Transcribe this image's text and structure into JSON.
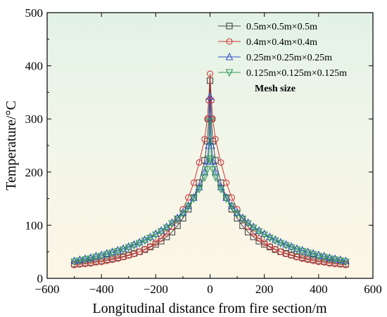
{
  "chart_data": {
    "type": "line",
    "title": "",
    "xlabel": "Longitudinal distance from fire section/m",
    "ylabel": "Temperature/°C",
    "xlim": [
      -600,
      600
    ],
    "ylim": [
      0,
      500
    ],
    "xticks": [
      -600,
      -400,
      -200,
      0,
      200,
      400,
      600
    ],
    "yticks": [
      0,
      100,
      200,
      300,
      400,
      500
    ],
    "xtick_labels": [
      "−600",
      "−400",
      "−200",
      "0",
      "200",
      "400",
      "600"
    ],
    "ytick_labels": [
      "0",
      "100",
      "200",
      "300",
      "400",
      "500"
    ],
    "legend_title": "Mesh size",
    "legend_position": "top-right",
    "grid": false,
    "background": "gradient: pale green (top) to pale cream (bottom)",
    "series": [
      {
        "name": "0.5m×0.5m×0.5m",
        "marker": "square",
        "color": "#444444",
        "x": [
          -500,
          -480,
          -460,
          -440,
          -420,
          -400,
          -380,
          -360,
          -340,
          -320,
          -300,
          -280,
          -260,
          -240,
          -220,
          -200,
          -180,
          -160,
          -140,
          -120,
          -100,
          -80,
          -60,
          -40,
          -20,
          -10,
          -5,
          0,
          5,
          10,
          20,
          40,
          60,
          80,
          100,
          120,
          140,
          160,
          180,
          200,
          220,
          240,
          260,
          280,
          300,
          320,
          340,
          360,
          380,
          400,
          420,
          440,
          460,
          480,
          500
        ],
        "y": [
          27,
          28,
          29,
          30,
          32,
          33,
          35,
          37,
          39,
          41,
          44,
          47,
          50,
          54,
          59,
          64,
          70,
          78,
          87,
          99,
          113,
          130,
          152,
          180,
          222,
          258,
          300,
          372,
          300,
          258,
          222,
          180,
          152,
          130,
          113,
          99,
          87,
          78,
          70,
          64,
          59,
          54,
          50,
          47,
          44,
          41,
          39,
          37,
          35,
          33,
          32,
          30,
          29,
          28,
          27
        ]
      },
      {
        "name": "0.4m×0.4m×0.4m",
        "marker": "circle",
        "color": "#cc3333",
        "x": [
          -500,
          -480,
          -460,
          -440,
          -420,
          -400,
          -380,
          -360,
          -340,
          -320,
          -300,
          -280,
          -260,
          -240,
          -220,
          -200,
          -180,
          -160,
          -140,
          -120,
          -100,
          -80,
          -60,
          -40,
          -20,
          -10,
          -5,
          0,
          5,
          10,
          20,
          40,
          60,
          80,
          100,
          120,
          140,
          160,
          180,
          200,
          220,
          240,
          260,
          280,
          300,
          320,
          340,
          360,
          380,
          400,
          420,
          440,
          460,
          480,
          500
        ],
        "y": [
          25,
          26,
          27,
          28,
          30,
          31,
          33,
          35,
          37,
          40,
          43,
          46,
          50,
          55,
          60,
          67,
          75,
          85,
          97,
          112,
          130,
          152,
          180,
          218,
          262,
          300,
          335,
          385,
          335,
          300,
          262,
          218,
          180,
          152,
          130,
          112,
          97,
          85,
          75,
          67,
          60,
          55,
          50,
          46,
          43,
          40,
          37,
          35,
          33,
          31,
          30,
          28,
          27,
          26,
          25
        ]
      },
      {
        "name": "0.25m×0.25m×0.25m",
        "marker": "triangle-up",
        "color": "#3355cc",
        "x": [
          -500,
          -480,
          -460,
          -440,
          -420,
          -400,
          -380,
          -360,
          -340,
          -320,
          -300,
          -280,
          -260,
          -240,
          -220,
          -200,
          -180,
          -160,
          -140,
          -120,
          -100,
          -80,
          -60,
          -40,
          -20,
          -10,
          -5,
          0,
          5,
          10,
          20,
          40,
          60,
          80,
          100,
          120,
          140,
          160,
          180,
          200,
          220,
          240,
          260,
          280,
          300,
          320,
          340,
          360,
          380,
          400,
          420,
          440,
          460,
          480,
          500
        ],
        "y": [
          33,
          35,
          37,
          39,
          42,
          44,
          47,
          50,
          53,
          56,
          60,
          64,
          68,
          73,
          78,
          84,
          90,
          97,
          105,
          114,
          124,
          137,
          152,
          172,
          200,
          220,
          250,
          342,
          250,
          220,
          200,
          172,
          152,
          137,
          124,
          114,
          105,
          97,
          90,
          84,
          78,
          73,
          68,
          64,
          60,
          56,
          53,
          50,
          47,
          44,
          42,
          39,
          37,
          35,
          33
        ]
      },
      {
        "name": "0.125m×0.125m×0.125m",
        "marker": "triangle-down",
        "color": "#339955",
        "x": [
          -500,
          -480,
          -460,
          -440,
          -420,
          -400,
          -380,
          -360,
          -340,
          -320,
          -300,
          -280,
          -260,
          -240,
          -220,
          -200,
          -180,
          -160,
          -140,
          -120,
          -100,
          -80,
          -60,
          -40,
          -20,
          -10,
          -5,
          0,
          5,
          10,
          20,
          40,
          60,
          80,
          100,
          120,
          140,
          160,
          180,
          200,
          220,
          240,
          260,
          280,
          300,
          320,
          340,
          360,
          380,
          400,
          420,
          440,
          460,
          480,
          500
        ],
        "y": [
          31,
          33,
          35,
          37,
          40,
          42,
          45,
          48,
          51,
          54,
          58,
          62,
          66,
          71,
          76,
          82,
          88,
          95,
          103,
          112,
          122,
          135,
          150,
          168,
          190,
          205,
          225,
          295,
          225,
          205,
          190,
          168,
          150,
          135,
          122,
          112,
          103,
          95,
          88,
          82,
          76,
          71,
          66,
          62,
          58,
          54,
          51,
          48,
          45,
          42,
          40,
          37,
          35,
          33,
          31
        ]
      }
    ]
  }
}
